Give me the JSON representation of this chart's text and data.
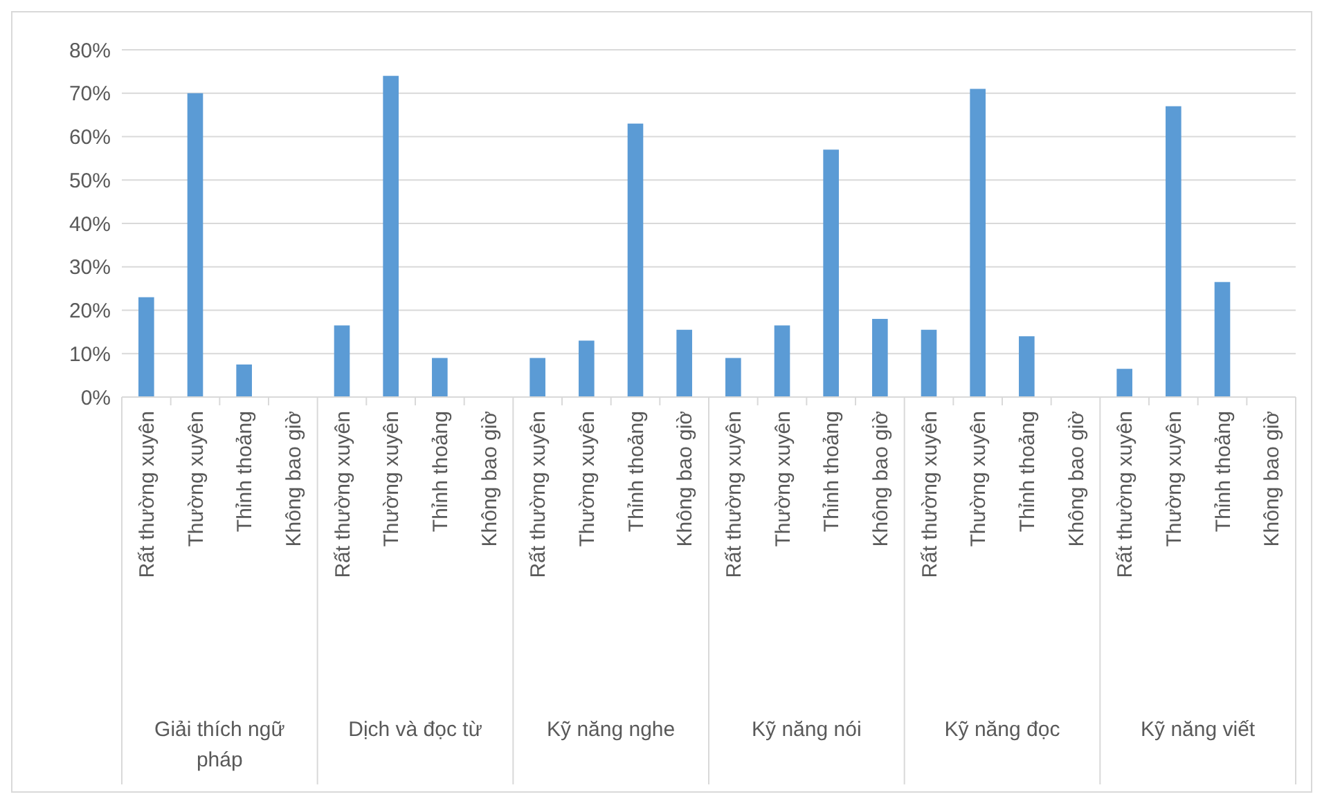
{
  "chart_data": {
    "type": "bar",
    "categories": [
      "Rất thường xuyên",
      "Thường xuyên",
      "Thỉnh thoảng",
      "Không bao giờ",
      "Rất thường xuyên",
      "Thường xuyên",
      "Thỉnh thoảng",
      "Không bao giờ",
      "Rất thường xuyên",
      "Thường xuyên",
      "Thỉnh thoảng",
      "Không bao giờ",
      "Rất thường xuyên",
      "Thường xuyên",
      "Thỉnh thoảng",
      "Không bao giờ",
      "Rất thường xuyên",
      "Thường xuyên",
      "Thỉnh thoảng",
      "Không bao giờ",
      "Rất thường xuyên",
      "Thường xuyên",
      "Thỉnh thoảng",
      "Không bao giờ"
    ],
    "values": [
      23,
      70,
      7.5,
      0,
      16.5,
      74,
      9,
      0,
      9,
      13,
      63,
      15.5,
      9,
      16.5,
      57,
      18,
      15.5,
      71,
      14,
      0,
      6.5,
      67,
      26.5,
      0
    ],
    "color": "#5b9bd5",
    "annotations": [
      "Giải thích ngữ pháp",
      "Dịch và đọc từ",
      "Kỹ năng nghe",
      "Kỹ năng nói",
      "Kỹ năng đọc",
      "Kỹ năng viết"
    ],
    "ylim": [
      0,
      80
    ],
    "yticks": [
      {
        "value": 0,
        "label": "0%"
      },
      {
        "value": 10,
        "label": "10%"
      },
      {
        "value": 20,
        "label": "20%"
      },
      {
        "value": 30,
        "label": "30%"
      },
      {
        "value": 40,
        "label": "40%"
      },
      {
        "value": 50,
        "label": "50%"
      },
      {
        "value": 60,
        "label": "60%"
      },
      {
        "value": 70,
        "label": "70%"
      },
      {
        "value": 80,
        "label": "80%"
      }
    ],
    "grid": "y"
  }
}
